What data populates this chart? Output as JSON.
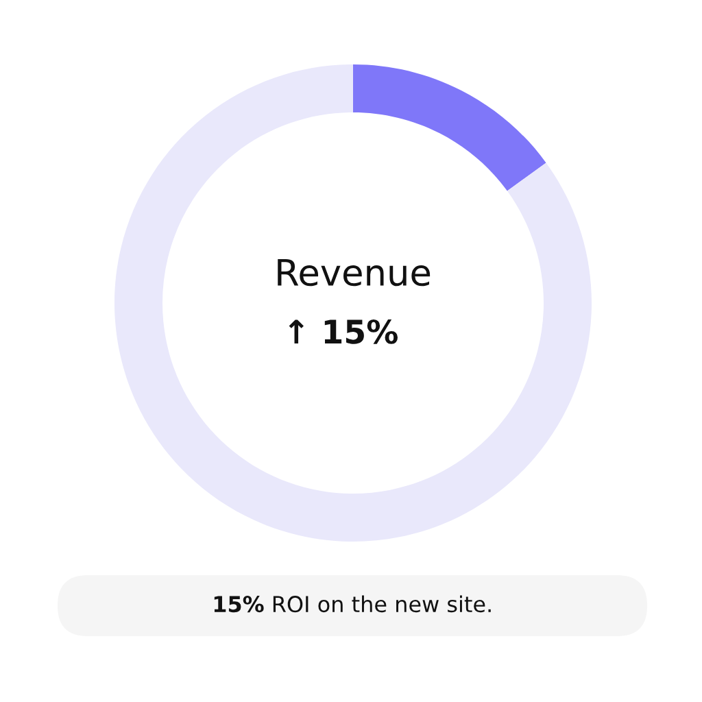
{
  "chart_data": {
    "type": "donut",
    "title": "Revenue",
    "subtitle": "↑ 15%",
    "categories": [
      null,
      null
    ],
    "values": [
      15,
      85
    ],
    "colors": [
      "#7f77f9",
      "#e9e8fb"
    ],
    "annotations": [
      "15% ROI on the new site."
    ]
  }
}
